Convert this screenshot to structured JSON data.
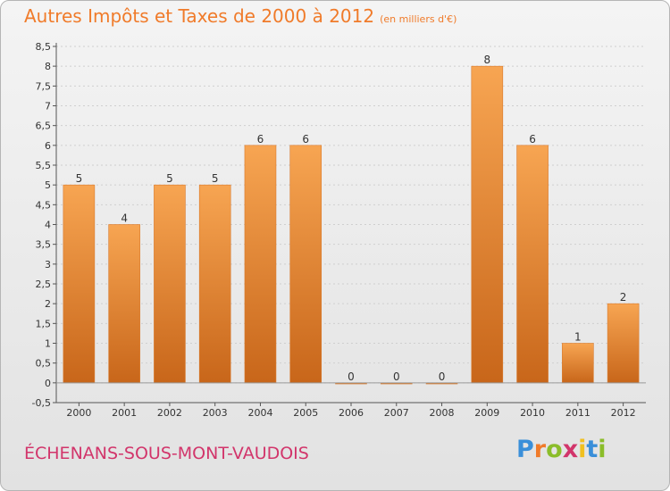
{
  "header": {
    "title": "Autres Impôts et Taxes de 2000 à 2012",
    "unit": "(en milliers d'€)"
  },
  "footer": {
    "commune": "ÉCHENANS-SOUS-MONT-VAUDOIS",
    "logo": {
      "letters": [
        "P",
        "r",
        "o",
        "x",
        "i",
        "t",
        "i"
      ],
      "colors": [
        "#3a8fd9",
        "#f07b2a",
        "#8bbd2a",
        "#d2356b",
        "#f0c020",
        "#3a8fd9",
        "#8bbd2a"
      ]
    }
  },
  "chart_data": {
    "type": "bar",
    "categories": [
      "2000",
      "2001",
      "2002",
      "2003",
      "2004",
      "2005",
      "2006",
      "2007",
      "2008",
      "2009",
      "2010",
      "2011",
      "2012"
    ],
    "values": [
      5,
      4,
      5,
      5,
      6,
      6,
      0,
      0,
      0,
      8,
      6,
      1,
      2
    ],
    "data_labels": [
      "5",
      "4",
      "5",
      "5",
      "6",
      "6",
      "0",
      "0",
      "0",
      "8",
      "6",
      "1",
      "2"
    ],
    "yticks": [
      -0.5,
      0,
      0.5,
      1,
      1.5,
      2,
      2.5,
      3,
      3.5,
      4,
      4.5,
      5,
      5.5,
      6,
      6.5,
      7,
      7.5,
      8,
      8.5
    ],
    "ytick_labels": [
      "-0,5",
      "0",
      "0,5",
      "1",
      "1,5",
      "2",
      "2,5",
      "3",
      "3,5",
      "4",
      "4,5",
      "5",
      "5,5",
      "6",
      "6,5",
      "7",
      "7,5",
      "8",
      "8,5"
    ],
    "ylim": [
      -0.5,
      8.5
    ],
    "grid": "horizontal",
    "bar_color": "#f39a45",
    "title": "Autres Impôts et Taxes de 2000 à 2012",
    "xlabel": "",
    "ylabel": ""
  }
}
